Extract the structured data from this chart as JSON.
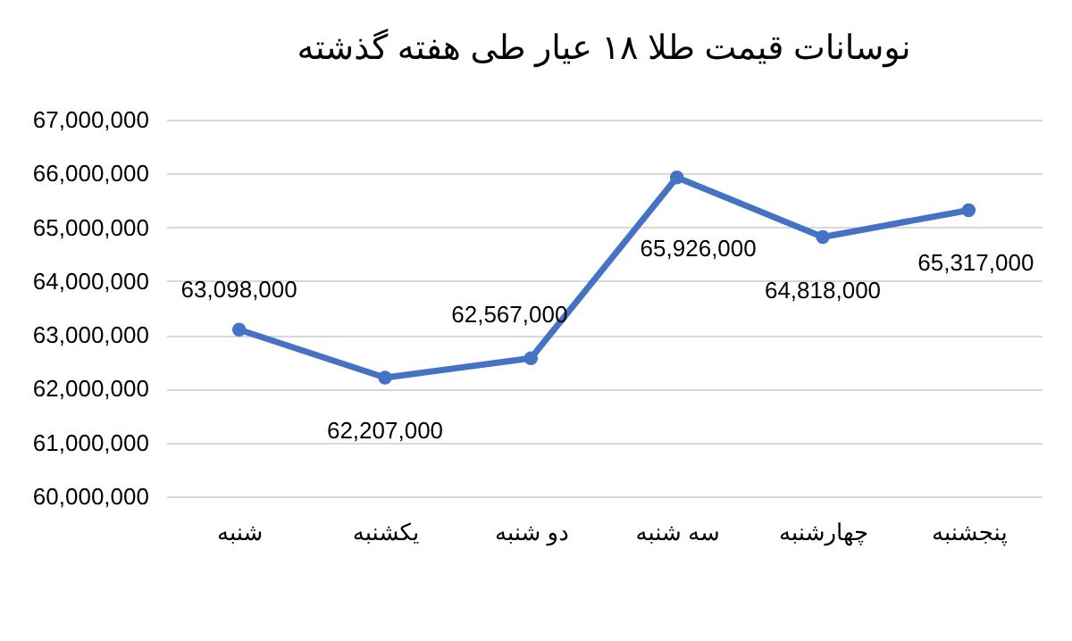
{
  "chart_data": {
    "type": "line",
    "title": "نوسانات قیمت طلا ۱۸ عیار طی هفته گذشته",
    "categories": [
      "شنبه",
      "یکشنبه",
      "دو شنبه",
      "سه شنبه",
      "چهارشنبه",
      "پنجشنبه"
    ],
    "series": [
      {
        "color": "#4472c4",
        "values": [
          63098000,
          62207000,
          62567000,
          65926000,
          64818000,
          65317000
        ],
        "value_labels": [
          "63,098,000",
          "62,207,000",
          "62,567,000",
          "65,926,000",
          "64,818,000",
          "65,317,000"
        ]
      }
    ],
    "ylim": [
      60000000,
      67000000
    ],
    "yticks": [
      {
        "value": 60000000,
        "label": "60,000,000"
      },
      {
        "value": 61000000,
        "label": "61,000,000"
      },
      {
        "value": 62000000,
        "label": "62,000,000"
      },
      {
        "value": 63000000,
        "label": "63,000,000"
      },
      {
        "value": 64000000,
        "label": "64,000,000"
      },
      {
        "value": 65000000,
        "label": "65,000,000"
      },
      {
        "value": 66000000,
        "label": "66,000,000"
      },
      {
        "value": 67000000,
        "label": "67,000,000"
      }
    ],
    "grid": "y",
    "marker": "circle"
  }
}
